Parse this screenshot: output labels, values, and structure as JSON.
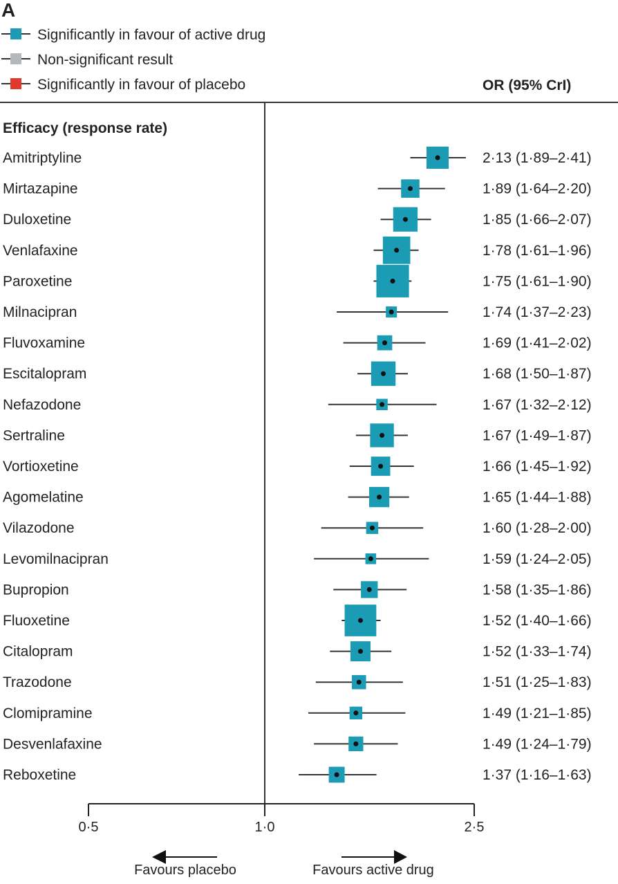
{
  "chart_data": {
    "type": "forest",
    "panel_label": "A",
    "legend": [
      {
        "label": "Significantly in favour of active drug",
        "color": "#1b9bb4"
      },
      {
        "label": "Non-significant result",
        "color": "#b4b8bb"
      },
      {
        "label": "Significantly in favour of placebo",
        "color": "#e0392e"
      }
    ],
    "legend_placement": "top-left",
    "column_header": "OR (95% CrI)",
    "section_title": "Efficacy (response rate)",
    "x_scale": "log",
    "xlim": [
      0.5,
      2.5
    ],
    "xticks": [
      {
        "value": 0.5,
        "label": "0·5"
      },
      {
        "value": 1.0,
        "label": "1·0"
      },
      {
        "value": 2.5,
        "label": "2·5"
      }
    ],
    "reference_line": 1.0,
    "direction_labels": {
      "left": "Favours placebo",
      "right": "Favours active drug"
    },
    "rows": [
      {
        "name": "Amitriptyline",
        "or": 2.13,
        "lo": 1.89,
        "hi": 2.41,
        "label": "2·13 (1·89–2·41)",
        "significance": "active"
      },
      {
        "name": "Mirtazapine",
        "or": 1.89,
        "lo": 1.64,
        "hi": 2.2,
        "label": "1·89 (1·64–2·20)",
        "significance": "active"
      },
      {
        "name": "Duloxetine",
        "or": 1.85,
        "lo": 1.66,
        "hi": 2.07,
        "label": "1·85 (1·66–2·07)",
        "significance": "active"
      },
      {
        "name": "Venlafaxine",
        "or": 1.78,
        "lo": 1.61,
        "hi": 1.96,
        "label": "1·78 (1·61–1·96)",
        "significance": "active"
      },
      {
        "name": "Paroxetine",
        "or": 1.75,
        "lo": 1.61,
        "hi": 1.9,
        "label": "1·75 (1·61–1·90)",
        "significance": "active"
      },
      {
        "name": "Milnacipran",
        "or": 1.74,
        "lo": 1.37,
        "hi": 2.23,
        "label": "1·74 (1·37–2·23)",
        "significance": "active"
      },
      {
        "name": "Fluvoxamine",
        "or": 1.69,
        "lo": 1.41,
        "hi": 2.02,
        "label": "1·69 (1·41–2·02)",
        "significance": "active"
      },
      {
        "name": "Escitalopram",
        "or": 1.68,
        "lo": 1.5,
        "hi": 1.87,
        "label": "1·68 (1·50–1·87)",
        "significance": "active"
      },
      {
        "name": "Nefazodone",
        "or": 1.67,
        "lo": 1.32,
        "hi": 2.12,
        "label": "1·67 (1·32–2·12)",
        "significance": "active"
      },
      {
        "name": "Sertraline",
        "or": 1.67,
        "lo": 1.49,
        "hi": 1.87,
        "label": "1·67 (1·49–1·87)",
        "significance": "active"
      },
      {
        "name": "Vortioxetine",
        "or": 1.66,
        "lo": 1.45,
        "hi": 1.92,
        "label": "1·66 (1·45–1·92)",
        "significance": "active"
      },
      {
        "name": "Agomelatine",
        "or": 1.65,
        "lo": 1.44,
        "hi": 1.88,
        "label": "1·65 (1·44–1·88)",
        "significance": "active"
      },
      {
        "name": "Vilazodone",
        "or": 1.6,
        "lo": 1.28,
        "hi": 2.0,
        "label": "1·60 (1·28–2·00)",
        "significance": "active"
      },
      {
        "name": "Levomilnacipran",
        "or": 1.59,
        "lo": 1.24,
        "hi": 2.05,
        "label": "1·59 (1·24–2·05)",
        "significance": "active"
      },
      {
        "name": "Bupropion",
        "or": 1.58,
        "lo": 1.35,
        "hi": 1.86,
        "label": "1·58 (1·35–1·86)",
        "significance": "active"
      },
      {
        "name": "Fluoxetine",
        "or": 1.52,
        "lo": 1.4,
        "hi": 1.66,
        "label": "1·52 (1·40–1·66)",
        "significance": "active"
      },
      {
        "name": "Citalopram",
        "or": 1.52,
        "lo": 1.33,
        "hi": 1.74,
        "label": "1·52 (1·33–1·74)",
        "significance": "active"
      },
      {
        "name": "Trazodone",
        "or": 1.51,
        "lo": 1.25,
        "hi": 1.83,
        "label": "1·51 (1·25–1·83)",
        "significance": "active"
      },
      {
        "name": "Clomipramine",
        "or": 1.49,
        "lo": 1.21,
        "hi": 1.85,
        "label": "1·49 (1·21–1·85)",
        "significance": "active"
      },
      {
        "name": "Desvenlafaxine",
        "or": 1.49,
        "lo": 1.24,
        "hi": 1.79,
        "label": "1·49 (1·24–1·79)",
        "significance": "active"
      },
      {
        "name": "Reboxetine",
        "or": 1.37,
        "lo": 1.16,
        "hi": 1.63,
        "label": "1·37 (1·16–1·63)",
        "significance": "active"
      }
    ]
  }
}
